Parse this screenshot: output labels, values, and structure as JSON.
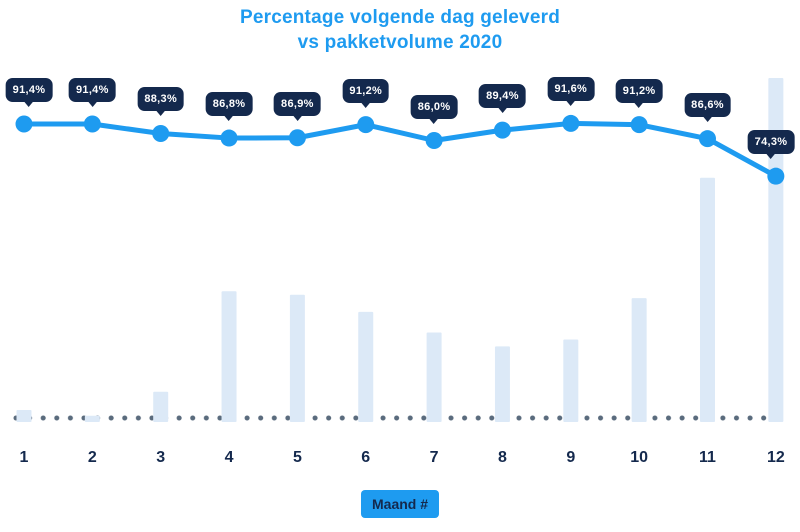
{
  "title": {
    "line1": "Percentage volgende dag geleverd",
    "line2": "vs pakketvolume 2020"
  },
  "x_axis": {
    "badge_label": "Maand #"
  },
  "colors": {
    "accent_blue": "#1E9BF0",
    "navy": "#14294D",
    "bar_fill": "#DCE9F7",
    "dot_gray": "#5A6B7D",
    "tooltip_bg": "#14294D",
    "tooltip_text": "#FFFFFF",
    "background": "#FFFFFF"
  },
  "chart_data": {
    "type": "line+bar",
    "title": "Percentage volgende dag geleverd vs pakketvolume 2020",
    "xlabel": "Maand #",
    "categories": [
      "1",
      "2",
      "3",
      "4",
      "5",
      "6",
      "7",
      "8",
      "9",
      "10",
      "11",
      "12"
    ],
    "series": [
      {
        "name": "Percentage volgende dag geleverd",
        "type": "line",
        "unit": "%",
        "values": [
          91.4,
          91.4,
          88.3,
          86.8,
          86.9,
          91.2,
          86.0,
          89.4,
          91.6,
          91.2,
          86.6,
          74.3
        ],
        "labels": [
          "91,4%",
          "91,4%",
          "88,3%",
          "86,8%",
          "86,9%",
          "91,2%",
          "86,0%",
          "89,4%",
          "91,6%",
          "91,2%",
          "86,6%",
          "74,3%"
        ]
      },
      {
        "name": "Pakketvolume 2020",
        "type": "bar",
        "unit": "relative volume (estimated from bar heights, max month = 100)",
        "values": [
          3.5,
          1.8,
          8.8,
          38,
          37,
          32,
          26,
          22,
          24,
          36,
          71,
          100
        ]
      }
    ],
    "ylim_percent": [
      70,
      95
    ],
    "legend": "none",
    "grid": "dotted baseline only"
  }
}
